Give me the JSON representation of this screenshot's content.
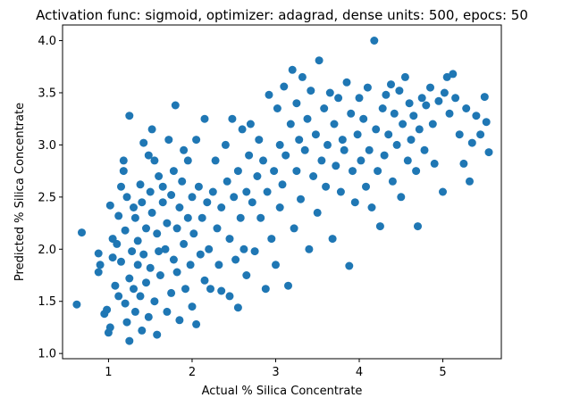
{
  "chart_data": {
    "type": "scatter",
    "title": "Activation func: sigmoid, optimizer: adagrad, dense units: 500, epocs: 50",
    "xlabel": "Actual % Silica Concentrate",
    "ylabel": "Predicted % Silica Concentrate",
    "xlim": [
      0.45,
      5.7
    ],
    "ylim": [
      0.95,
      4.15
    ],
    "xticks": [
      1,
      2,
      3,
      4,
      5
    ],
    "yticks": [
      1.0,
      1.5,
      2.0,
      2.5,
      3.0,
      3.5,
      4.0
    ],
    "grid": false,
    "point_color": "#1f77b4",
    "series": [
      {
        "points": [
          [
            0.62,
            1.47
          ],
          [
            0.68,
            2.16
          ],
          [
            0.88,
            1.96
          ],
          [
            0.88,
            1.78
          ],
          [
            0.9,
            1.85
          ],
          [
            0.95,
            1.38
          ],
          [
            0.98,
            1.42
          ],
          [
            1.0,
            1.2
          ],
          [
            1.02,
            1.25
          ],
          [
            1.02,
            2.42
          ],
          [
            1.05,
            2.1
          ],
          [
            1.05,
            1.92
          ],
          [
            1.08,
            1.65
          ],
          [
            1.1,
            2.05
          ],
          [
            1.12,
            1.55
          ],
          [
            1.12,
            2.32
          ],
          [
            1.15,
            1.88
          ],
          [
            1.15,
            2.6
          ],
          [
            1.18,
            2.85
          ],
          [
            1.18,
            2.75
          ],
          [
            1.2,
            1.48
          ],
          [
            1.2,
            2.18
          ],
          [
            1.22,
            1.3
          ],
          [
            1.22,
            2.5
          ],
          [
            1.25,
            1.12
          ],
          [
            1.25,
            1.72
          ],
          [
            1.25,
            3.28
          ],
          [
            1.28,
            1.98
          ],
          [
            1.3,
            2.4
          ],
          [
            1.3,
            1.62
          ],
          [
            1.32,
            1.4
          ],
          [
            1.32,
            2.3
          ],
          [
            1.35,
            1.85
          ],
          [
            1.35,
            2.08
          ],
          [
            1.38,
            1.55
          ],
          [
            1.38,
            2.62
          ],
          [
            1.4,
            1.22
          ],
          [
            1.4,
            2.45
          ],
          [
            1.42,
            1.95
          ],
          [
            1.42,
            3.02
          ],
          [
            1.45,
            1.68
          ],
          [
            1.45,
            2.2
          ],
          [
            1.48,
            2.9
          ],
          [
            1.48,
            1.35
          ],
          [
            1.5,
            2.55
          ],
          [
            1.5,
            1.82
          ],
          [
            1.52,
            3.15
          ],
          [
            1.52,
            2.35
          ],
          [
            1.55,
            2.85
          ],
          [
            1.55,
            1.5
          ],
          [
            1.58,
            2.15
          ],
          [
            1.58,
            1.18
          ],
          [
            1.6,
            2.7
          ],
          [
            1.6,
            1.98
          ],
          [
            1.62,
            1.75
          ],
          [
            1.65,
            2.45
          ],
          [
            1.65,
            2.6
          ],
          [
            1.68,
            2.0
          ],
          [
            1.7,
            1.4
          ],
          [
            1.7,
            2.25
          ],
          [
            1.72,
            3.05
          ],
          [
            1.75,
            2.52
          ],
          [
            1.75,
            1.58
          ],
          [
            1.78,
            1.9
          ],
          [
            1.78,
            2.75
          ],
          [
            1.8,
            3.38
          ],
          [
            1.82,
            2.2
          ],
          [
            1.82,
            1.78
          ],
          [
            1.85,
            2.4
          ],
          [
            1.85,
            1.32
          ],
          [
            1.88,
            2.65
          ],
          [
            1.9,
            2.05
          ],
          [
            1.9,
            2.95
          ],
          [
            1.92,
            1.62
          ],
          [
            1.95,
            2.3
          ],
          [
            1.95,
            2.85
          ],
          [
            1.98,
            1.85
          ],
          [
            2.0,
            2.5
          ],
          [
            2.0,
            1.45
          ],
          [
            2.02,
            2.15
          ],
          [
            2.05,
            1.28
          ],
          [
            2.05,
            3.05
          ],
          [
            2.08,
            2.6
          ],
          [
            2.1,
            1.95
          ],
          [
            2.12,
            2.3
          ],
          [
            2.15,
            3.25
          ],
          [
            2.15,
            1.7
          ],
          [
            2.18,
            2.45
          ],
          [
            2.2,
            2.0
          ],
          [
            2.22,
            1.62
          ],
          [
            2.25,
            2.55
          ],
          [
            2.28,
            2.85
          ],
          [
            2.3,
            2.2
          ],
          [
            2.32,
            1.85
          ],
          [
            2.35,
            1.6
          ],
          [
            2.35,
            2.4
          ],
          [
            2.4,
            3.0
          ],
          [
            2.42,
            2.65
          ],
          [
            2.45,
            1.55
          ],
          [
            2.45,
            2.1
          ],
          [
            2.48,
            3.25
          ],
          [
            2.5,
            2.5
          ],
          [
            2.52,
            1.9
          ],
          [
            2.55,
            1.44
          ],
          [
            2.55,
            2.75
          ],
          [
            2.58,
            2.3
          ],
          [
            2.6,
            3.15
          ],
          [
            2.62,
            2.0
          ],
          [
            2.65,
            1.75
          ],
          [
            2.65,
            2.55
          ],
          [
            2.68,
            2.9
          ],
          [
            2.7,
            3.2
          ],
          [
            2.72,
            2.45
          ],
          [
            2.75,
            1.98
          ],
          [
            2.78,
            2.7
          ],
          [
            2.8,
            3.05
          ],
          [
            2.82,
            2.3
          ],
          [
            2.85,
            2.85
          ],
          [
            2.88,
            1.62
          ],
          [
            2.9,
            2.55
          ],
          [
            2.92,
            3.48
          ],
          [
            2.95,
            2.1
          ],
          [
            2.98,
            2.75
          ],
          [
            3.0,
            1.85
          ],
          [
            3.02,
            3.35
          ],
          [
            3.05,
            2.4
          ],
          [
            3.05,
            3.0
          ],
          [
            3.08,
            2.62
          ],
          [
            3.1,
            3.56
          ],
          [
            3.12,
            2.9
          ],
          [
            3.15,
            1.65
          ],
          [
            3.18,
            3.2
          ],
          [
            3.2,
            3.72
          ],
          [
            3.22,
            2.2
          ],
          [
            3.25,
            2.75
          ],
          [
            3.25,
            3.4
          ],
          [
            3.28,
            3.05
          ],
          [
            3.3,
            2.48
          ],
          [
            3.32,
            3.65
          ],
          [
            3.35,
            2.95
          ],
          [
            3.38,
            3.25
          ],
          [
            3.4,
            2.0
          ],
          [
            3.42,
            3.52
          ],
          [
            3.45,
            2.7
          ],
          [
            3.48,
            3.1
          ],
          [
            3.5,
            2.35
          ],
          [
            3.52,
            3.81
          ],
          [
            3.55,
            2.85
          ],
          [
            3.58,
            3.35
          ],
          [
            3.6,
            2.6
          ],
          [
            3.62,
            3.0
          ],
          [
            3.65,
            3.5
          ],
          [
            3.68,
            2.1
          ],
          [
            3.7,
            3.2
          ],
          [
            3.72,
            2.8
          ],
          [
            3.75,
            3.45
          ],
          [
            3.78,
            2.55
          ],
          [
            3.8,
            3.05
          ],
          [
            3.82,
            2.95
          ],
          [
            3.85,
            3.6
          ],
          [
            3.88,
            1.84
          ],
          [
            3.9,
            3.3
          ],
          [
            3.92,
            2.75
          ],
          [
            3.95,
            2.45
          ],
          [
            3.98,
            3.1
          ],
          [
            4.0,
            3.45
          ],
          [
            4.02,
            2.85
          ],
          [
            4.05,
            3.25
          ],
          [
            4.08,
            2.6
          ],
          [
            4.1,
            3.55
          ],
          [
            4.12,
            2.95
          ],
          [
            4.15,
            2.4
          ],
          [
            4.18,
            4.0
          ],
          [
            4.2,
            3.15
          ],
          [
            4.22,
            2.75
          ],
          [
            4.25,
            2.22
          ],
          [
            4.28,
            3.35
          ],
          [
            4.3,
            2.9
          ],
          [
            4.32,
            3.48
          ],
          [
            4.35,
            3.1
          ],
          [
            4.38,
            3.58
          ],
          [
            4.4,
            2.65
          ],
          [
            4.42,
            3.3
          ],
          [
            4.45,
            3.0
          ],
          [
            4.48,
            3.52
          ],
          [
            4.5,
            2.5
          ],
          [
            4.52,
            3.2
          ],
          [
            4.55,
            3.65
          ],
          [
            4.58,
            2.85
          ],
          [
            4.6,
            3.4
          ],
          [
            4.62,
            3.05
          ],
          [
            4.65,
            3.28
          ],
          [
            4.68,
            2.75
          ],
          [
            4.7,
            2.22
          ],
          [
            4.72,
            3.15
          ],
          [
            4.75,
            3.45
          ],
          [
            4.78,
            2.95
          ],
          [
            4.8,
            3.38
          ],
          [
            4.85,
            3.55
          ],
          [
            4.88,
            3.2
          ],
          [
            4.9,
            2.82
          ],
          [
            4.95,
            3.42
          ],
          [
            5.0,
            2.55
          ],
          [
            5.02,
            3.5
          ],
          [
            5.05,
            3.65
          ],
          [
            5.08,
            3.3
          ],
          [
            5.12,
            3.68
          ],
          [
            5.15,
            3.45
          ],
          [
            5.2,
            3.1
          ],
          [
            5.25,
            2.82
          ],
          [
            5.28,
            3.35
          ],
          [
            5.32,
            2.65
          ],
          [
            5.35,
            3.02
          ],
          [
            5.4,
            3.28
          ],
          [
            5.45,
            3.1
          ],
          [
            5.5,
            3.46
          ],
          [
            5.52,
            3.22
          ],
          [
            5.55,
            2.93
          ]
        ]
      }
    ]
  }
}
